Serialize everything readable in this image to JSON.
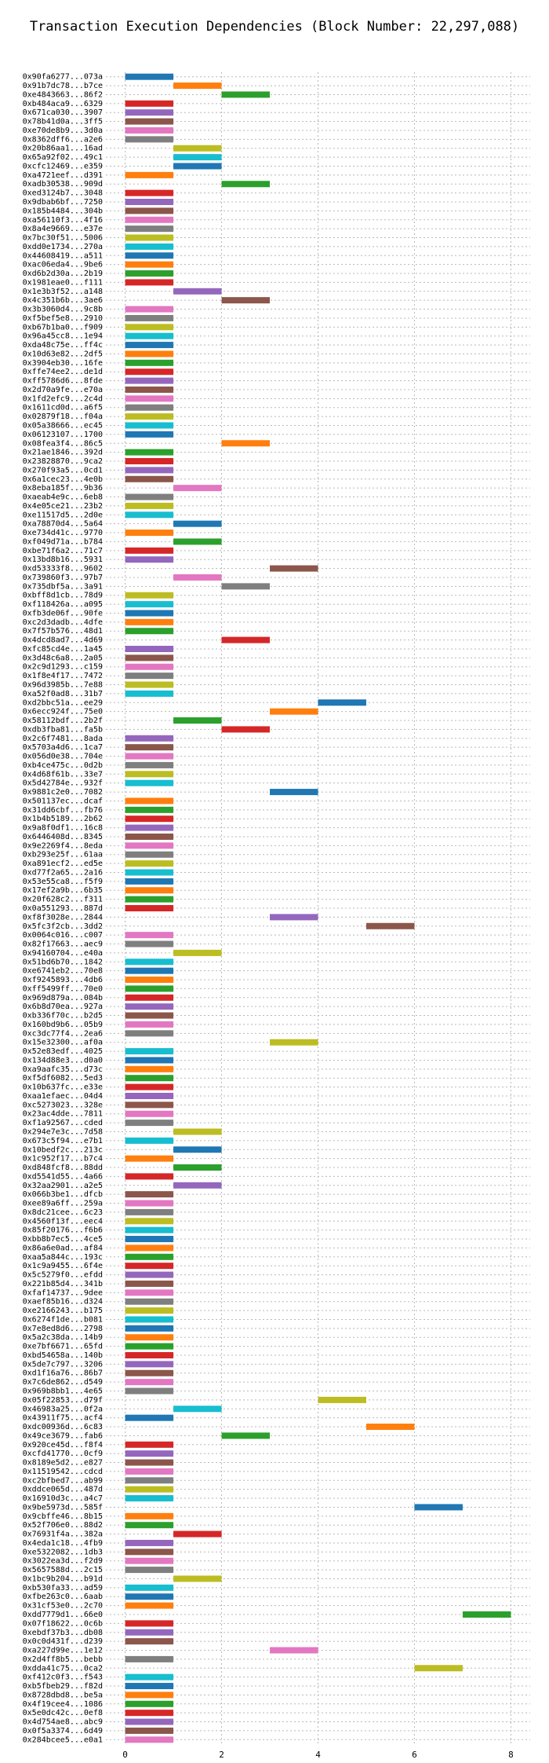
{
  "chart_data": {
    "type": "timeline",
    "title": "Transaction Execution Dependencies (Block Number: 22,297,088)",
    "categories": [
      "0x90fa6277...073a",
      "0x91b7dc78...b7ce",
      "0xe4843663...86f2",
      "0xb484aca9...6329",
      "0x671ca030...3907",
      "0x78b41d0a...3ff5",
      "0xe70de8b9...3d0a",
      "0x8362dff6...a2e6",
      "0x20b86aa1...16ad",
      "0x65a92f02...49c1",
      "0xcfc12469...e359",
      "0xa4721eef...d391",
      "0xadb30538...909d",
      "0xed3124b7...3048",
      "0x9dbab6bf...7250",
      "0x185b4484...304b",
      "0xa56110f3...4f16",
      "0x8a4e9669...e37e",
      "0x7bc30f51...5006",
      "0xdd0e1734...270a",
      "0x44608419...a511",
      "0xac06eda4...9be6",
      "0xd6b2d30a...2b19",
      "0x1981eae0...f111",
      "0x1e3b3f52...a148",
      "0x4c351b6b...3ae6",
      "0x3b3060d4...9c8b",
      "0xf5bef5e8...2910",
      "0xb67b1ba0...f909",
      "0x96a45cc8...1e94",
      "0xda48c75e...ff4c",
      "0x10d63e82...2df5",
      "0x3904eb30...16fe",
      "0xffe74ee2...de1d",
      "0xff5786d6...8fde",
      "0x2d70a9fe...e70a",
      "0x1fd2efc9...2c4d",
      "0x1611cd0d...a6f5",
      "0x02879f18...f04a",
      "0x05a38666...ec45",
      "0x06123107...1700",
      "0x08fea3f4...86c5",
      "0x21ae1846...392d",
      "0x23828870...9ca2",
      "0x270f93a5...0cd1",
      "0x6a1cec23...4e0b",
      "0x8eba185f...9b36",
      "0xaeab4e9c...6eb8",
      "0x4e05ce21...23b2",
      "0xe11517d5...2d0e",
      "0xa78870d4...5a64",
      "0xe734d41c...9770",
      "0xf049d71a...b784",
      "0xbe71f6a2...71c7",
      "0x13bd8b16...5931",
      "0xd53333f8...9602",
      "0x739860f3...97b7",
      "0x735dbf5a...3a91",
      "0xbff8d1cb...78d9",
      "0xf118426a...a095",
      "0xfb3de06f...90fe",
      "0xc2d3dadb...4dfe",
      "0x7f57b576...48d1",
      "0x4dcd8ad7...4d69",
      "0xfc85cd4e...1a45",
      "0x3d48c6a8...2a05",
      "0x2c9d1293...c159",
      "0x1f8e4f17...7472",
      "0x96d3985b...7e88",
      "0xa52f0ad8...31b7",
      "0xd2bbc51a...ee29",
      "0x6ecc924f...75e0",
      "0x58112bdf...2b2f",
      "0xdb3fba81...fa5b",
      "0x2c6f7481...8ada",
      "0x5703a4d6...1ca7",
      "0x056d0e38...704e",
      "0xb4ce475c...0d2b",
      "0x4d68f61b...33e7",
      "0x5d42784e...932f",
      "0x9881c2e0...7082",
      "0x501137ec...dcaf",
      "0x31dd6cbf...fb76",
      "0x1b4b5189...2b62",
      "0x9a8f0df1...16c8",
      "0x6446408d...8345",
      "0x9e2269f4...8eda",
      "0xb293e25f...61aa",
      "0xa891ecf2...ed5e",
      "0xd77f2a65...2a16",
      "0x53e55ca8...f5f9",
      "0x17ef2a9b...6b35",
      "0x20f628c2...f311",
      "0x0a551293...887d",
      "0xf8f3028e...2844",
      "0x5fc3f2cb...3dd2",
      "0x0064c016...c007",
      "0x82f17663...aec9",
      "0x94160704...e40a",
      "0x51bd6b70...1842",
      "0xe6741eb2...70e8",
      "0xf9245893...4db6",
      "0xff5499ff...70e0",
      "0x969d879a...084b",
      "0x6b8d70ea...927a",
      "0xb336f70c...b2d5",
      "0x160bd9b6...05b9",
      "0xc3dc77f4...2ea6",
      "0x15e32300...af0a",
      "0x52e83edf...4025",
      "0x134d88e3...d0a0",
      "0xa9aafc35...d73c",
      "0xf5df6082...5ed3",
      "0x10b637fc...e33e",
      "0xaa1efaec...04d4",
      "0xc5273023...328e",
      "0x23ac4dde...7811",
      "0xf1a92567...cded",
      "0x294e7e3c...7d58",
      "0x673c5f94...e7b1",
      "0x10bedf2c...213c",
      "0x1c952f17...b7c4",
      "0xd848fcf8...88dd",
      "0xd5541d55...4a66",
      "0x32aa2901...a2e5",
      "0x066b3be1...dfcb",
      "0xee89a6ff...259a",
      "0x8dc21cee...6c23",
      "0x4560f13f...eec4",
      "0x85f20176...f6b6",
      "0xbb8b7ec5...4ce5",
      "0x86a6e0ad...af84",
      "0xaa5a844c...193c",
      "0x1c9a9455...6f4e",
      "0x5c5279f0...efdd",
      "0x221b85d4...341b",
      "0xfaf14737...9dee",
      "0xaef85b16...d324",
      "0xe2166243...b175",
      "0x6274f1de...b081",
      "0x7e8ed8d6...2798",
      "0x5a2c38da...14b9",
      "0xe7bf6671...65fd",
      "0xbd54658a...140b",
      "0x5de7c797...3206",
      "0xd1f16a76...86b7",
      "0x7c6de862...d549",
      "0x969b8bb1...4e65",
      "0x05f22853...d79f",
      "0x46983a25...0f2a",
      "0x43911f75...acf4",
      "0xdc00936d...6c83",
      "0x49ce3679...fab6",
      "0x920ce45d...f8f4",
      "0xcfd41770...0cf9",
      "0x8189e5d2...e827",
      "0x11519542...cdcd",
      "0xc2bfbed7...ab99",
      "0xddce065d...487d",
      "0x16910d3c...a4c7",
      "0x9be5973d...585f",
      "0x9cbffe46...8b15",
      "0x52f706e0...88d2",
      "0x76931f4a...382a",
      "0x4eda1c18...4fb9",
      "0xe5322082...1db3",
      "0x3022ea3d...f2d9",
      "0x5657588d...2c15",
      "0x1bc9b204...b91d",
      "0xb530fa33...ad59",
      "0xfbe263c0...6aab",
      "0x31cf53e0...2c70",
      "0xdd7779d1...66e0",
      "0x07f18622...0c6b",
      "0xebdf37b3...db08",
      "0x0c0d431f...d239",
      "0xa227d99e...1e12",
      "0x2d4ff8b5...bebb",
      "0xdda41c75...0ca2",
      "0xf412c0f3...f543",
      "0xb5fbeb29...f82d",
      "0x8728dbd8...be5a",
      "0x4f19cee4...1086",
      "0x5e0dc42c...0ef8",
      "0x4d754ae8...abc9",
      "0x0f5a3374...6d49",
      "0x284bcee5...e0a1"
    ],
    "start": [
      0,
      1,
      2,
      0,
      0,
      0,
      0,
      0,
      1,
      1,
      1,
      0,
      2,
      0,
      0,
      0,
      0,
      0,
      0,
      0,
      0,
      0,
      0,
      0,
      1,
      2,
      0,
      0,
      0,
      0,
      0,
      0,
      0,
      0,
      0,
      0,
      0,
      0,
      0,
      0,
      0,
      2,
      0,
      0,
      0,
      0,
      1,
      0,
      0,
      0,
      1,
      0,
      1,
      0,
      0,
      3,
      1,
      2,
      0,
      0,
      0,
      0,
      0,
      2,
      0,
      0,
      0,
      0,
      0,
      0,
      4,
      3,
      1,
      2,
      0,
      0,
      0,
      0,
      0,
      0,
      3,
      0,
      0,
      0,
      0,
      0,
      0,
      0,
      0,
      0,
      0,
      0,
      0,
      0,
      3,
      5,
      0,
      0,
      1,
      0,
      0,
      0,
      0,
      0,
      0,
      0,
      0,
      0,
      3,
      0,
      0,
      0,
      0,
      0,
      0,
      0,
      0,
      0,
      1,
      0,
      1,
      0,
      1,
      0,
      1,
      0,
      0,
      0,
      0,
      0,
      0,
      0,
      0,
      0,
      0,
      0,
      0,
      0,
      0,
      0,
      0,
      0,
      0,
      0,
      0,
      0,
      0,
      0,
      4,
      1,
      0,
      5,
      2,
      0,
      0,
      0,
      0,
      0,
      0,
      0,
      6,
      0,
      0,
      1,
      0,
      0,
      0,
      0,
      1,
      0,
      0,
      0,
      7,
      0,
      0,
      0,
      3,
      0,
      6,
      0,
      0,
      0,
      0,
      0,
      0,
      0,
      0
    ],
    "end": [
      1,
      2,
      3,
      1,
      1,
      1,
      1,
      1,
      2,
      2,
      2,
      1,
      3,
      1,
      1,
      1,
      1,
      1,
      1,
      1,
      1,
      1,
      1,
      1,
      2,
      3,
      1,
      1,
      1,
      1,
      1,
      1,
      1,
      1,
      1,
      1,
      1,
      1,
      1,
      1,
      1,
      3,
      1,
      1,
      1,
      1,
      2,
      1,
      1,
      1,
      2,
      1,
      2,
      1,
      1,
      4,
      2,
      3,
      1,
      1,
      1,
      1,
      1,
      3,
      1,
      1,
      1,
      1,
      1,
      1,
      5,
      4,
      2,
      3,
      1,
      1,
      1,
      1,
      1,
      1,
      4,
      1,
      1,
      1,
      1,
      1,
      1,
      1,
      1,
      1,
      1,
      1,
      1,
      1,
      4,
      6,
      1,
      1,
      2,
      1,
      1,
      1,
      1,
      1,
      1,
      1,
      1,
      1,
      4,
      1,
      1,
      1,
      1,
      1,
      1,
      1,
      1,
      1,
      2,
      1,
      2,
      1,
      2,
      1,
      2,
      1,
      1,
      1,
      1,
      1,
      1,
      1,
      1,
      1,
      1,
      1,
      1,
      1,
      1,
      1,
      1,
      1,
      1,
      1,
      1,
      1,
      1,
      1,
      5,
      2,
      1,
      6,
      3,
      1,
      1,
      1,
      1,
      1,
      1,
      1,
      7,
      1,
      1,
      2,
      1,
      1,
      1,
      1,
      2,
      1,
      1,
      1,
      8,
      1,
      1,
      1,
      4,
      1,
      7,
      1,
      1,
      1,
      1,
      1,
      1,
      1,
      1
    ],
    "colors": [
      "#1f77b4",
      "#ff7f0e",
      "#2ca02c",
      "#d62728",
      "#9467bd",
      "#8c564b",
      "#e377c2",
      "#7f7f7f",
      "#bcbd22",
      "#17becf"
    ],
    "xlim": [
      -0.4,
      8.4
    ],
    "xticks": [
      0,
      2,
      4,
      6,
      8
    ],
    "grid": true
  }
}
